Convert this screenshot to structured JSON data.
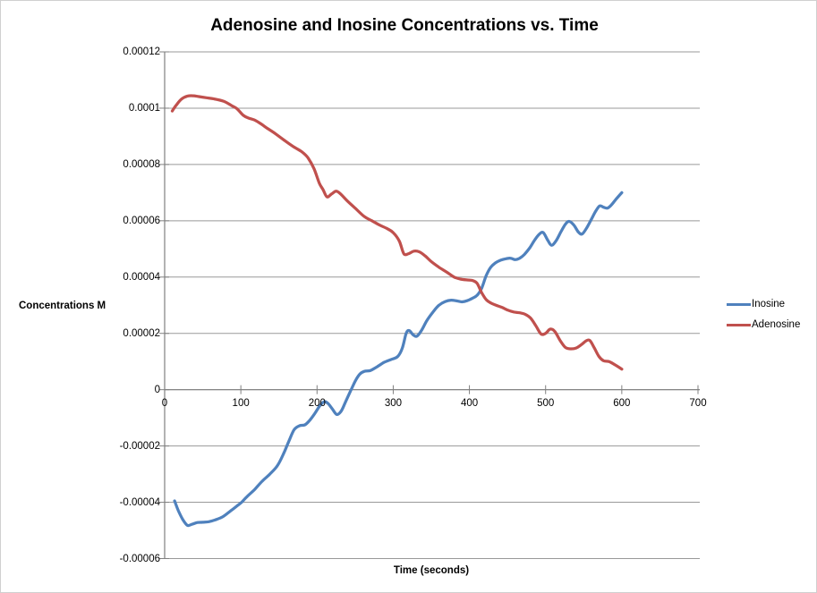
{
  "chart_data": {
    "type": "line",
    "title": "Adenosine and Inosine Concentrations vs. Time",
    "xlabel": "Time (seconds)",
    "ylabel": "Concentrations M",
    "xlim": [
      0,
      700
    ],
    "ylim": [
      -6e-05,
      0.00012
    ],
    "grid": true,
    "legend_position": "right",
    "x_ticks": [
      {
        "label": "0",
        "value": 0
      },
      {
        "label": "100",
        "value": 100
      },
      {
        "label": "200",
        "value": 200
      },
      {
        "label": "300",
        "value": 300
      },
      {
        "label": "400",
        "value": 400
      },
      {
        "label": "500",
        "value": 500
      },
      {
        "label": "600",
        "value": 600
      },
      {
        "label": "700",
        "value": 700
      }
    ],
    "y_ticks": [
      {
        "label": "0.00012",
        "value": 0.00012
      },
      {
        "label": "0.0001",
        "value": 0.0001
      },
      {
        "label": "0.00008",
        "value": 8e-05
      },
      {
        "label": "0.00006",
        "value": 6e-05
      },
      {
        "label": "0.00004",
        "value": 4e-05
      },
      {
        "label": "0.00002",
        "value": 2e-05
      },
      {
        "label": "0",
        "value": 0
      },
      {
        "label": "-0.00002",
        "value": -2e-05
      },
      {
        "label": "-0.00004",
        "value": -4e-05
      },
      {
        "label": "-0.00006",
        "value": -6e-05
      }
    ],
    "series": [
      {
        "name": "Inosine",
        "color": "#4F81BD",
        "points": [
          [
            13,
            -3.95e-05
          ],
          [
            18,
            -4.3e-05
          ],
          [
            24,
            -4.62e-05
          ],
          [
            30,
            -4.82e-05
          ],
          [
            36,
            -4.78e-05
          ],
          [
            43,
            -4.72e-05
          ],
          [
            50,
            -4.71e-05
          ],
          [
            58,
            -4.69e-05
          ],
          [
            66,
            -4.63e-05
          ],
          [
            76,
            -4.52e-05
          ],
          [
            86,
            -4.32e-05
          ],
          [
            95,
            -4.13e-05
          ],
          [
            101,
            -4e-05
          ],
          [
            108,
            -3.8e-05
          ],
          [
            118,
            -3.55e-05
          ],
          [
            128,
            -3.25e-05
          ],
          [
            138,
            -3e-05
          ],
          [
            148,
            -2.7e-05
          ],
          [
            156,
            -2.28e-05
          ],
          [
            163,
            -1.83e-05
          ],
          [
            170,
            -1.42e-05
          ],
          [
            177,
            -1.28e-05
          ],
          [
            184,
            -1.25e-05
          ],
          [
            190,
            -1.1e-05
          ],
          [
            197,
            -8.5e-06
          ],
          [
            203,
            -6e-06
          ],
          [
            209,
            -4.3e-06
          ],
          [
            214,
            -4.8e-06
          ],
          [
            220,
            -6.8e-06
          ],
          [
            226,
            -8.8e-06
          ],
          [
            232,
            -7.5e-06
          ],
          [
            238,
            -4e-06
          ],
          [
            244,
            -5e-07
          ],
          [
            250,
            3e-06
          ],
          [
            256,
            5.5e-06
          ],
          [
            262,
            6.5e-06
          ],
          [
            270,
            6.8e-06
          ],
          [
            278,
            8e-06
          ],
          [
            288,
            9.7e-06
          ],
          [
            298,
            1.08e-05
          ],
          [
            306,
            1.18e-05
          ],
          [
            312,
            1.48e-05
          ],
          [
            317,
            2e-05
          ],
          [
            321,
            2.1e-05
          ],
          [
            326,
            1.95e-05
          ],
          [
            331,
            1.9e-05
          ],
          [
            337,
            2.1e-05
          ],
          [
            344,
            2.45e-05
          ],
          [
            352,
            2.75e-05
          ],
          [
            360,
            3e-05
          ],
          [
            368,
            3.13e-05
          ],
          [
            376,
            3.18e-05
          ],
          [
            384,
            3.15e-05
          ],
          [
            390,
            3.12e-05
          ],
          [
            397,
            3.16e-05
          ],
          [
            404,
            3.25e-05
          ],
          [
            410,
            3.35e-05
          ],
          [
            416,
            3.6e-05
          ],
          [
            422,
            4.05e-05
          ],
          [
            428,
            4.35e-05
          ],
          [
            434,
            4.5e-05
          ],
          [
            441,
            4.6e-05
          ],
          [
            448,
            4.65e-05
          ],
          [
            454,
            4.67e-05
          ],
          [
            460,
            4.62e-05
          ],
          [
            466,
            4.67e-05
          ],
          [
            472,
            4.8e-05
          ],
          [
            479,
            5.03e-05
          ],
          [
            486,
            5.33e-05
          ],
          [
            492,
            5.53e-05
          ],
          [
            497,
            5.58e-05
          ],
          [
            503,
            5.3e-05
          ],
          [
            508,
            5.13e-05
          ],
          [
            514,
            5.3e-05
          ],
          [
            520,
            5.6e-05
          ],
          [
            526,
            5.88e-05
          ],
          [
            531,
            5.98e-05
          ],
          [
            537,
            5.85e-05
          ],
          [
            543,
            5.6e-05
          ],
          [
            548,
            5.53e-05
          ],
          [
            554,
            5.75e-05
          ],
          [
            560,
            6.05e-05
          ],
          [
            566,
            6.35e-05
          ],
          [
            571,
            6.53e-05
          ],
          [
            576,
            6.48e-05
          ],
          [
            581,
            6.45e-05
          ],
          [
            586,
            6.55e-05
          ],
          [
            592,
            6.75e-05
          ],
          [
            600,
            7e-05
          ]
        ]
      },
      {
        "name": "Adenosine",
        "color": "#C0504D",
        "points": [
          [
            10,
            9.9e-05
          ],
          [
            15,
            0.000101
          ],
          [
            22,
            0.0001032
          ],
          [
            30,
            0.0001043
          ],
          [
            38,
            0.0001044
          ],
          [
            45,
            0.0001041
          ],
          [
            55,
            0.0001037
          ],
          [
            65,
            0.0001033
          ],
          [
            78,
            0.0001024
          ],
          [
            88,
            0.0001009
          ],
          [
            95,
            9.98e-05
          ],
          [
            103,
            9.75e-05
          ],
          [
            110,
            9.65e-05
          ],
          [
            118,
            9.58e-05
          ],
          [
            126,
            9.45e-05
          ],
          [
            135,
            9.28e-05
          ],
          [
            145,
            9.1e-05
          ],
          [
            156,
            8.88e-05
          ],
          [
            168,
            8.65e-05
          ],
          [
            180,
            8.45e-05
          ],
          [
            188,
            8.24e-05
          ],
          [
            196,
            7.85e-05
          ],
          [
            203,
            7.34e-05
          ],
          [
            208,
            7.1e-05
          ],
          [
            213,
            6.85e-05
          ],
          [
            219,
            6.95e-05
          ],
          [
            225,
            7.05e-05
          ],
          [
            231,
            6.95e-05
          ],
          [
            240,
            6.7e-05
          ],
          [
            250,
            6.45e-05
          ],
          [
            262,
            6.15e-05
          ],
          [
            272,
            6e-05
          ],
          [
            282,
            5.85e-05
          ],
          [
            292,
            5.72e-05
          ],
          [
            300,
            5.58e-05
          ],
          [
            308,
            5.28e-05
          ],
          [
            314,
            4.83e-05
          ],
          [
            320,
            4.83e-05
          ],
          [
            327,
            4.92e-05
          ],
          [
            334,
            4.9e-05
          ],
          [
            342,
            4.75e-05
          ],
          [
            350,
            4.55e-05
          ],
          [
            360,
            4.35e-05
          ],
          [
            370,
            4.18e-05
          ],
          [
            380,
            4e-05
          ],
          [
            388,
            3.93e-05
          ],
          [
            396,
            3.9e-05
          ],
          [
            404,
            3.88e-05
          ],
          [
            410,
            3.78e-05
          ],
          [
            416,
            3.45e-05
          ],
          [
            422,
            3.2e-05
          ],
          [
            428,
            3.08e-05
          ],
          [
            435,
            3e-05
          ],
          [
            443,
            2.92e-05
          ],
          [
            450,
            2.83e-05
          ],
          [
            458,
            2.76e-05
          ],
          [
            466,
            2.73e-05
          ],
          [
            473,
            2.68e-05
          ],
          [
            480,
            2.55e-05
          ],
          [
            487,
            2.28e-05
          ],
          [
            494,
            1.98e-05
          ],
          [
            500,
            2e-05
          ],
          [
            506,
            2.15e-05
          ],
          [
            512,
            2.07e-05
          ],
          [
            519,
            1.75e-05
          ],
          [
            526,
            1.5e-05
          ],
          [
            533,
            1.45e-05
          ],
          [
            540,
            1.48e-05
          ],
          [
            547,
            1.6e-05
          ],
          [
            553,
            1.73e-05
          ],
          [
            558,
            1.75e-05
          ],
          [
            564,
            1.48e-05
          ],
          [
            570,
            1.18e-05
          ],
          [
            576,
            1.03e-05
          ],
          [
            583,
            1e-05
          ],
          [
            590,
            9e-06
          ],
          [
            596,
            8e-06
          ],
          [
            600,
            7.3e-06
          ]
        ]
      }
    ]
  },
  "legend": {
    "items": [
      {
        "label": "Inosine",
        "color": "#4F81BD"
      },
      {
        "label": "Adenosine",
        "color": "#C0504D"
      }
    ]
  },
  "styles": {
    "background": "#FFFFFF",
    "outer_border": "#D0D0D0",
    "gridline_color": "#999999",
    "axis_color": "#808080",
    "text_color": "#000000"
  }
}
